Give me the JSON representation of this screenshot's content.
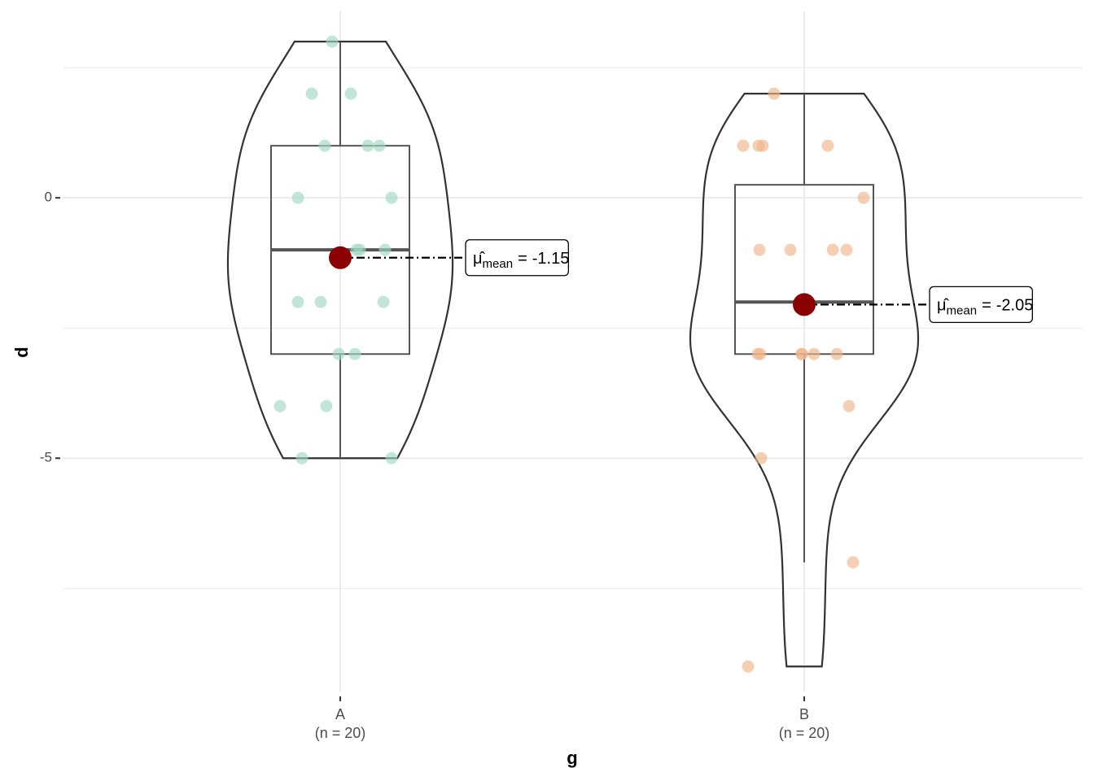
{
  "chart_data": {
    "type": "violin",
    "x_label": "g",
    "y_label": "d",
    "categories": [
      "A",
      "B"
    ],
    "n_labels": [
      "(n = 20)",
      "(n = 20)"
    ],
    "series": [
      {
        "name": "A",
        "color": "#9fd8c2",
        "values": [
          3,
          2,
          2,
          1,
          1,
          1,
          0,
          0,
          -1,
          -1,
          -1,
          -2,
          -2,
          -2,
          -3,
          -3,
          -4,
          -4,
          -5,
          -5
        ]
      },
      {
        "name": "B",
        "color": "#f0b58a",
        "values": [
          2,
          1,
          1,
          1,
          1,
          0,
          -1,
          -1,
          -1,
          -1,
          -3,
          -3,
          -3,
          -3,
          -3,
          -3,
          -4,
          -5,
          -7,
          -9
        ]
      }
    ],
    "mean_labels": [
      {
        "symbol": "μ̂",
        "subscript": "mean",
        "equals": "=",
        "value": -1.15
      },
      {
        "symbol": "μ̂",
        "subscript": "mean",
        "equals": "=",
        "value": -2.05
      }
    ],
    "mean_color": "#8b0000",
    "ylim": [
      -9.48,
      3.58
    ],
    "yticks": [
      -5,
      0
    ],
    "minor_grid": [
      -7.5,
      -2.5,
      2.5
    ],
    "grid": true
  }
}
